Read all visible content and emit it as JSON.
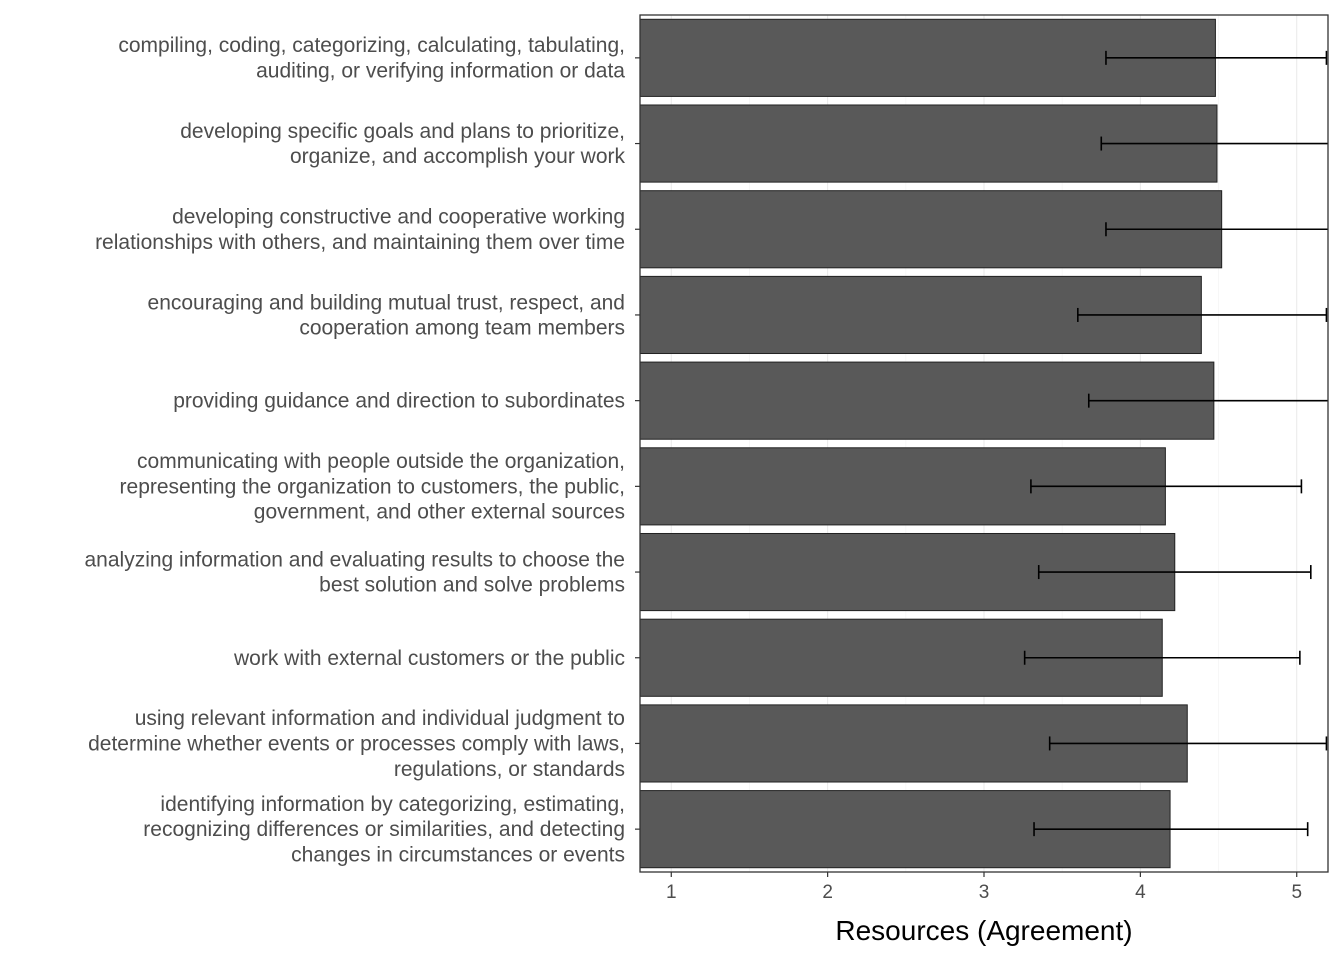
{
  "chart_data": {
    "type": "bar",
    "orientation": "horizontal",
    "xlabel": "Resources (Agreement)",
    "ylabel": "",
    "xlim": [
      0.8,
      5.2
    ],
    "xticks": [
      1,
      2,
      3,
      4,
      5
    ],
    "grid": true,
    "bar_color": "#595959",
    "categories": [
      [
        "compiling, coding, categorizing, calculating, tabulating,",
        "auditing, or verifying information or data"
      ],
      [
        "developing specific goals and plans to prioritize,",
        "organize, and accomplish your work"
      ],
      [
        "developing constructive and cooperative working",
        "relationships with others, and maintaining them over time"
      ],
      [
        "encouraging and building mutual trust, respect, and",
        "cooperation among team members"
      ],
      [
        "providing guidance and direction to subordinates"
      ],
      [
        "communicating with people outside the organization,",
        "representing the organization to customers, the public,",
        "government, and other external sources"
      ],
      [
        "analyzing information and evaluating results to choose the",
        "best solution and solve problems"
      ],
      [
        "work with external customers or the public"
      ],
      [
        "using relevant information and individual judgment to",
        "determine whether events or processes comply with laws,",
        "regulations, or standards"
      ],
      [
        "identifying information by categorizing, estimating,",
        "recognizing differences or similarities, and detecting",
        "changes in circumstances or events"
      ]
    ],
    "values": [
      4.48,
      4.49,
      4.52,
      4.39,
      4.47,
      4.16,
      4.22,
      4.14,
      4.3,
      4.19
    ],
    "error_low": [
      3.78,
      3.75,
      3.78,
      3.6,
      3.67,
      3.3,
      3.35,
      3.26,
      3.42,
      3.32
    ],
    "error_high": [
      5.19,
      5.23,
      5.26,
      5.19,
      5.27,
      5.03,
      5.09,
      5.02,
      5.19,
      5.07
    ]
  }
}
